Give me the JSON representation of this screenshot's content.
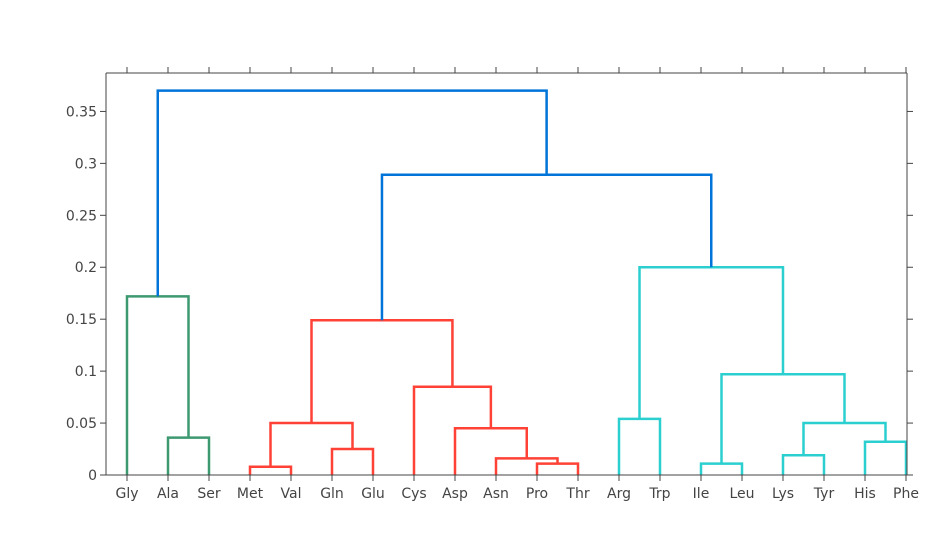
{
  "chart_data": {
    "type": "dendrogram",
    "title": "",
    "xlabel": "",
    "ylabel": "",
    "ylim": [
      0,
      0.387
    ],
    "y_ticks": [
      0,
      0.05,
      0.1,
      0.15,
      0.2,
      0.25,
      0.3,
      0.35
    ],
    "y_tick_labels": [
      "0",
      "0.05",
      "0.1",
      "0.15",
      "0.2",
      "0.25",
      "0.3",
      "0.35"
    ],
    "leaves": [
      "Gly",
      "Ala",
      "Ser",
      "Met",
      "Val",
      "Gln",
      "Glu",
      "Cys",
      "Asp",
      "Asn",
      "Pro",
      "Thr",
      "Arg",
      "Trp",
      "Ile",
      "Leu",
      "Lys",
      "Tyr",
      "His",
      "Phe"
    ],
    "grid": false,
    "colors": {
      "green": "#3d9970",
      "red": "#ff4136",
      "cyan": "#2ccfcf",
      "blue": "#0074d9",
      "axis": "#444444"
    },
    "links": [
      {
        "a": 0,
        "b": 1.5,
        "ha": 0,
        "hb": 0.036,
        "h": 0.172,
        "color": "green"
      },
      {
        "a": 1,
        "b": 2,
        "ha": 0,
        "hb": 0,
        "h": 0.036,
        "color": "green"
      },
      {
        "a": 3,
        "b": 4,
        "ha": 0,
        "hb": 0,
        "h": 0.008,
        "color": "red"
      },
      {
        "a": 5,
        "b": 6,
        "ha": 0,
        "hb": 0,
        "h": 0.025,
        "color": "red"
      },
      {
        "a": 3.5,
        "b": 5.5,
        "ha": 0.008,
        "hb": 0.025,
        "h": 0.05,
        "color": "red"
      },
      {
        "a": 10,
        "b": 11,
        "ha": 0,
        "hb": 0,
        "h": 0.011,
        "color": "red"
      },
      {
        "a": 9,
        "b": 10.5,
        "ha": 0,
        "hb": 0.011,
        "h": 0.016,
        "color": "red"
      },
      {
        "a": 8,
        "b": 9.75,
        "ha": 0,
        "hb": 0.016,
        "h": 0.045,
        "color": "red"
      },
      {
        "a": 7,
        "b": 8.875,
        "ha": 0,
        "hb": 0.045,
        "h": 0.085,
        "color": "red"
      },
      {
        "a": 4.5,
        "b": 7.9375,
        "ha": 0.05,
        "hb": 0.085,
        "h": 0.149,
        "color": "red"
      },
      {
        "a": 12,
        "b": 13,
        "ha": 0,
        "hb": 0,
        "h": 0.054,
        "color": "cyan"
      },
      {
        "a": 14,
        "b": 15,
        "ha": 0,
        "hb": 0,
        "h": 0.011,
        "color": "cyan"
      },
      {
        "a": 16,
        "b": 17,
        "ha": 0,
        "hb": 0,
        "h": 0.019,
        "color": "cyan"
      },
      {
        "a": 18,
        "b": 19,
        "ha": 0,
        "hb": 0,
        "h": 0.032,
        "color": "cyan"
      },
      {
        "a": 16.5,
        "b": 18.5,
        "ha": 0.019,
        "hb": 0.032,
        "h": 0.05,
        "color": "cyan"
      },
      {
        "a": 14.5,
        "b": 17.5,
        "ha": 0.011,
        "hb": 0.05,
        "h": 0.097,
        "color": "cyan"
      },
      {
        "a": 12.5,
        "b": 16,
        "ha": 0.054,
        "hb": 0.097,
        "h": 0.2,
        "color": "cyan"
      },
      {
        "a": 6.21875,
        "b": 14.25,
        "ha": 0.149,
        "hb": 0.2,
        "h": 0.289,
        "color": "blue"
      },
      {
        "a": 0.75,
        "b": 10.234375,
        "ha": 0.172,
        "hb": 0.289,
        "h": 0.37,
        "color": "blue"
      }
    ]
  }
}
